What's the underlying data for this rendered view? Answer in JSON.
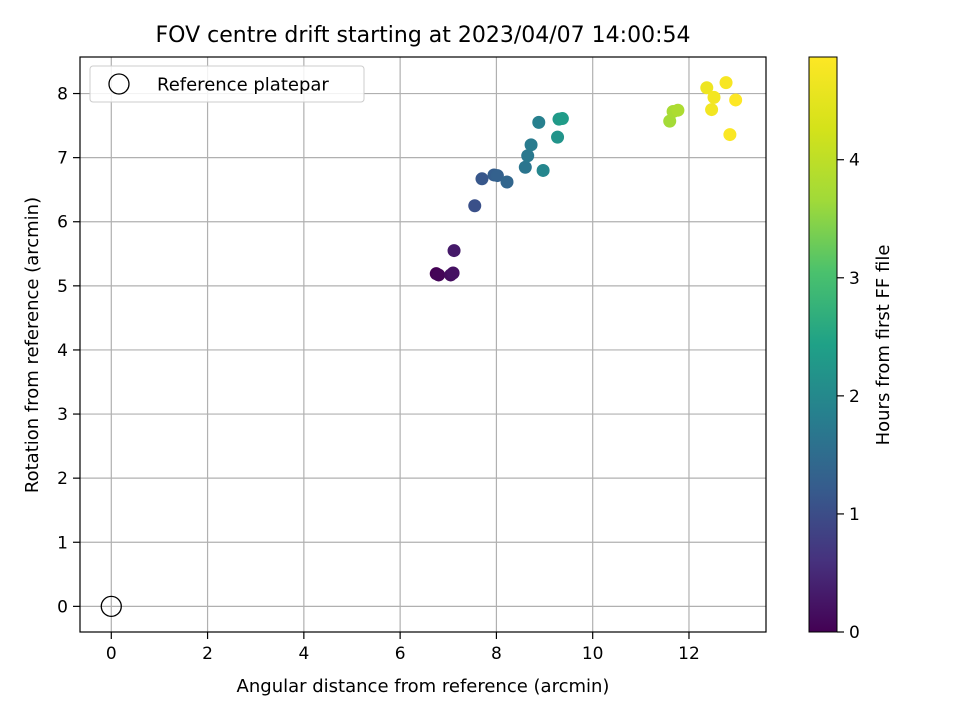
{
  "chart_data": {
    "type": "scatter",
    "title": "FOV centre drift starting at 2023/04/07 14:00:54",
    "xlabel": "Angular distance from reference (arcmin)",
    "ylabel": "Rotation from reference (arcmin)",
    "xlim": [
      -0.65,
      13.6
    ],
    "ylim": [
      -0.4,
      8.57
    ],
    "xticks": [
      0,
      2,
      4,
      6,
      8,
      10,
      12
    ],
    "yticks": [
      0,
      1,
      2,
      3,
      4,
      5,
      6,
      7,
      8
    ],
    "grid": true,
    "legend": {
      "position": "top-left",
      "entries": [
        "Reference platepar"
      ]
    },
    "reference_point": {
      "x": 0,
      "y": 0,
      "label": "Reference platepar"
    },
    "colorbar": {
      "label": "Hours from first FF file",
      "range": [
        0,
        4.87
      ],
      "ticks": [
        0,
        1,
        2,
        3,
        4
      ],
      "colormap": "viridis"
    },
    "points": [
      {
        "x": 6.75,
        "y": 5.19,
        "h": 0.0
      },
      {
        "x": 6.8,
        "y": 5.17,
        "h": 0.05
      },
      {
        "x": 7.05,
        "y": 5.17,
        "h": 0.15
      },
      {
        "x": 7.1,
        "y": 5.2,
        "h": 0.2
      },
      {
        "x": 7.12,
        "y": 5.55,
        "h": 0.3
      },
      {
        "x": 7.55,
        "y": 6.25,
        "h": 1.05
      },
      {
        "x": 7.7,
        "y": 6.67,
        "h": 1.15
      },
      {
        "x": 7.95,
        "y": 6.73,
        "h": 1.25
      },
      {
        "x": 8.02,
        "y": 6.72,
        "h": 1.3
      },
      {
        "x": 8.22,
        "y": 6.62,
        "h": 1.4
      },
      {
        "x": 8.6,
        "y": 6.85,
        "h": 1.65
      },
      {
        "x": 8.65,
        "y": 7.03,
        "h": 1.7
      },
      {
        "x": 8.72,
        "y": 7.2,
        "h": 1.75
      },
      {
        "x": 8.88,
        "y": 7.55,
        "h": 1.85
      },
      {
        "x": 8.97,
        "y": 6.8,
        "h": 1.95
      },
      {
        "x": 9.27,
        "y": 7.32,
        "h": 2.2
      },
      {
        "x": 9.3,
        "y": 7.6,
        "h": 2.3
      },
      {
        "x": 9.37,
        "y": 7.61,
        "h": 2.35
      },
      {
        "x": 11.6,
        "y": 7.57,
        "h": 3.7
      },
      {
        "x": 11.67,
        "y": 7.72,
        "h": 3.75
      },
      {
        "x": 11.77,
        "y": 7.74,
        "h": 3.8
      },
      {
        "x": 12.37,
        "y": 8.09,
        "h": 4.65
      },
      {
        "x": 12.47,
        "y": 7.75,
        "h": 4.7
      },
      {
        "x": 12.52,
        "y": 7.94,
        "h": 4.72
      },
      {
        "x": 12.77,
        "y": 8.17,
        "h": 4.78
      },
      {
        "x": 12.85,
        "y": 7.36,
        "h": 4.82
      },
      {
        "x": 12.97,
        "y": 7.9,
        "h": 4.87
      }
    ]
  }
}
